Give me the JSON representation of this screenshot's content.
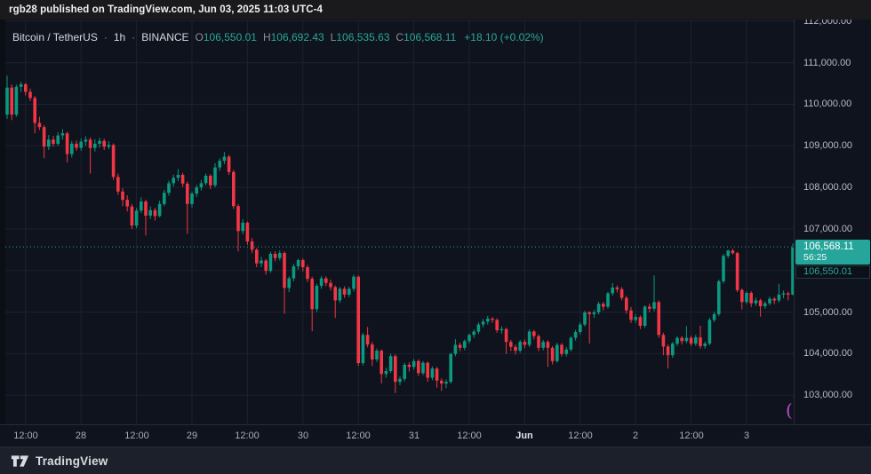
{
  "attribution": {
    "text": "rgb28 published on TradingView.com, Jun 03, 2025 11:03 UTC-4"
  },
  "legend": {
    "symbol": "Bitcoin / TetherUS",
    "sep1": "·",
    "interval": "1h",
    "sep2": "·",
    "exchange": "BINANCE",
    "o_label": "O",
    "o_value": "106,550.01",
    "h_label": "H",
    "h_value": "106,692.43",
    "l_label": "L",
    "l_value": "106,535.63",
    "c_label": "C",
    "c_value": "106,568.11",
    "change": "+18.10 (+0.02%)"
  },
  "price_axis": {
    "labels": [
      {
        "price": 112000,
        "text": "112,000.00"
      },
      {
        "price": 111000,
        "text": "111,000.00"
      },
      {
        "price": 110000,
        "text": "110,000.00"
      },
      {
        "price": 109000,
        "text": "109,000.00"
      },
      {
        "price": 108000,
        "text": "108,000.00"
      },
      {
        "price": 107000,
        "text": "107,000.00"
      },
      {
        "price": 105000,
        "text": "105,000.00"
      },
      {
        "price": 104000,
        "text": "104,000.00"
      },
      {
        "price": 103000,
        "text": "103,000.00"
      }
    ],
    "last_price_badge": {
      "price_text": "106,568.11",
      "countdown": "56:25"
    },
    "open_price_badge": {
      "price_text": "106,550.01"
    }
  },
  "time_axis": {
    "labels": [
      {
        "index": 4,
        "text": "12:00",
        "major": false
      },
      {
        "index": 16,
        "text": "28",
        "major": false
      },
      {
        "index": 28,
        "text": "12:00",
        "major": false
      },
      {
        "index": 40,
        "text": "29",
        "major": false
      },
      {
        "index": 52,
        "text": "12:00",
        "major": false
      },
      {
        "index": 64,
        "text": "30",
        "major": false
      },
      {
        "index": 76,
        "text": "12:00",
        "major": false
      },
      {
        "index": 88,
        "text": "31",
        "major": false
      },
      {
        "index": 100,
        "text": "12:00",
        "major": false
      },
      {
        "index": 112,
        "text": "Jun",
        "major": true
      },
      {
        "index": 124,
        "text": "12:00",
        "major": false
      },
      {
        "index": 136,
        "text": "2",
        "major": false
      },
      {
        "index": 148,
        "text": "12:00",
        "major": false
      },
      {
        "index": 160,
        "text": "3",
        "major": false
      }
    ]
  },
  "footer": {
    "logo_text": "TradingView"
  },
  "decorations": {
    "paren": "("
  },
  "colors": {
    "up": "#0a9981",
    "down": "#f23645",
    "grid": "#1c2230",
    "last_price_line": "#2aa79b",
    "badge": "#26a69a",
    "magenta": "#c04ad6"
  },
  "chart_data": {
    "type": "candlestick",
    "title": "Bitcoin / TetherUS · 1h · BINANCE",
    "interval": "1h",
    "ylim": [
      102320,
      112020
    ],
    "price_gridlines": [
      103000,
      104000,
      105000,
      106000,
      107000,
      108000,
      109000,
      110000,
      111000,
      112000
    ],
    "last_price": 106568.11,
    "open_price_marker": 106550.01,
    "time_start": "May 27 08:00",
    "time_end": "Jun 03 11:00",
    "candles": [
      [
        109750,
        110690,
        109650,
        110400
      ],
      [
        110400,
        110480,
        109620,
        109750
      ],
      [
        109750,
        110470,
        109700,
        110420
      ],
      [
        110420,
        110540,
        110300,
        110480
      ],
      [
        110480,
        110520,
        110210,
        110300
      ],
      [
        110300,
        110380,
        110080,
        110150
      ],
      [
        110150,
        110200,
        109300,
        109550
      ],
      [
        109550,
        109700,
        109380,
        109450
      ],
      [
        109450,
        109500,
        108700,
        108980
      ],
      [
        108980,
        109260,
        108900,
        109150
      ],
      [
        109150,
        109240,
        108980,
        109050
      ],
      [
        109050,
        109330,
        109000,
        109250
      ],
      [
        109250,
        109400,
        109150,
        109300
      ],
      [
        109300,
        109340,
        108600,
        108800
      ],
      [
        108800,
        109120,
        108720,
        109050
      ],
      [
        109050,
        109130,
        108880,
        108950
      ],
      [
        108950,
        109180,
        108880,
        109100
      ],
      [
        109100,
        109230,
        109000,
        109150
      ],
      [
        109150,
        109200,
        108330,
        108950
      ],
      [
        108950,
        109160,
        108860,
        109050
      ],
      [
        109050,
        109190,
        108960,
        109120
      ],
      [
        109120,
        109170,
        108900,
        108980
      ],
      [
        108980,
        109110,
        108920,
        109020
      ],
      [
        109020,
        109060,
        108180,
        108250
      ],
      [
        108250,
        108330,
        107820,
        107900
      ],
      [
        107900,
        107980,
        107550,
        107700
      ],
      [
        107700,
        107810,
        107420,
        107540
      ],
      [
        107540,
        107600,
        107000,
        107080
      ],
      [
        107080,
        107500,
        107020,
        107440
      ],
      [
        107440,
        107760,
        107380,
        107660
      ],
      [
        107660,
        107700,
        106840,
        107320
      ],
      [
        107320,
        107540,
        107240,
        107450
      ],
      [
        107450,
        107510,
        107200,
        107310
      ],
      [
        107310,
        107680,
        107280,
        107600
      ],
      [
        107600,
        107940,
        107550,
        107870
      ],
      [
        107870,
        108160,
        107800,
        108100
      ],
      [
        108100,
        108310,
        108020,
        108230
      ],
      [
        108230,
        108440,
        108150,
        108300
      ],
      [
        108300,
        108350,
        108010,
        108090
      ],
      [
        108090,
        108140,
        106880,
        107600
      ],
      [
        107600,
        107900,
        107520,
        107850
      ],
      [
        107850,
        108060,
        107770,
        108000
      ],
      [
        108000,
        108180,
        107920,
        108100
      ],
      [
        108100,
        108330,
        108050,
        108280
      ],
      [
        108280,
        108320,
        107960,
        108050
      ],
      [
        108050,
        108580,
        108000,
        108480
      ],
      [
        108480,
        108700,
        108400,
        108640
      ],
      [
        108640,
        108850,
        108560,
        108740
      ],
      [
        108740,
        108780,
        108300,
        108370
      ],
      [
        108370,
        108420,
        107480,
        107550
      ],
      [
        107550,
        107600,
        106460,
        106950
      ],
      [
        106950,
        107230,
        106870,
        107150
      ],
      [
        107150,
        107180,
        106620,
        106700
      ],
      [
        106700,
        106780,
        106420,
        106500
      ],
      [
        106500,
        106540,
        106080,
        106170
      ],
      [
        106170,
        106330,
        106080,
        106240
      ],
      [
        106240,
        106280,
        105900,
        105990
      ],
      [
        105990,
        106450,
        105940,
        106400
      ],
      [
        106400,
        106460,
        106220,
        106300
      ],
      [
        106300,
        106480,
        106240,
        106420
      ],
      [
        106420,
        106460,
        104960,
        105580
      ],
      [
        105580,
        105860,
        105480,
        105810
      ],
      [
        105810,
        106160,
        105740,
        106100
      ],
      [
        106100,
        106280,
        106020,
        106250
      ],
      [
        106250,
        106290,
        105980,
        106080
      ],
      [
        106080,
        106130,
        105720,
        105800
      ],
      [
        105800,
        105850,
        104540,
        105070
      ],
      [
        105070,
        105680,
        105000,
        105630
      ],
      [
        105630,
        105870,
        105560,
        105810
      ],
      [
        105810,
        105860,
        105620,
        105700
      ],
      [
        105700,
        105780,
        105520,
        105600
      ],
      [
        105600,
        105640,
        104860,
        105280
      ],
      [
        105280,
        105600,
        105220,
        105560
      ],
      [
        105560,
        105620,
        105340,
        105420
      ],
      [
        105420,
        105610,
        105360,
        105560
      ],
      [
        105560,
        105900,
        105500,
        105850
      ],
      [
        105850,
        105880,
        103700,
        103770
      ],
      [
        103770,
        104500,
        103720,
        104450
      ],
      [
        104450,
        104640,
        104150,
        104220
      ],
      [
        104220,
        104280,
        103700,
        103860
      ],
      [
        103860,
        104120,
        103800,
        104070
      ],
      [
        104070,
        104100,
        103280,
        103510
      ],
      [
        103510,
        103660,
        103420,
        103580
      ],
      [
        103580,
        104000,
        103530,
        103940
      ],
      [
        103940,
        103980,
        103050,
        103320
      ],
      [
        103320,
        103450,
        103240,
        103390
      ],
      [
        103390,
        103780,
        103330,
        103730
      ],
      [
        103730,
        103790,
        103570,
        103680
      ],
      [
        103680,
        103870,
        103610,
        103820
      ],
      [
        103820,
        103860,
        103460,
        103530
      ],
      [
        103530,
        103820,
        103480,
        103780
      ],
      [
        103780,
        103810,
        103320,
        103420
      ],
      [
        103420,
        103690,
        103360,
        103640
      ],
      [
        103640,
        103680,
        103180,
        103350
      ],
      [
        103350,
        103400,
        103100,
        103280
      ],
      [
        103280,
        103380,
        103170,
        103320
      ],
      [
        103320,
        104020,
        103280,
        103990
      ],
      [
        103990,
        104350,
        103940,
        104210
      ],
      [
        104210,
        104260,
        104060,
        104140
      ],
      [
        104140,
        104340,
        104080,
        104300
      ],
      [
        104300,
        104480,
        104240,
        104450
      ],
      [
        104450,
        104580,
        104380,
        104530
      ],
      [
        104530,
        104750,
        104470,
        104700
      ],
      [
        104700,
        104830,
        104630,
        104770
      ],
      [
        104770,
        104910,
        104700,
        104840
      ],
      [
        104840,
        104880,
        104740,
        104810
      ],
      [
        104810,
        104850,
        104500,
        104560
      ],
      [
        104560,
        104660,
        104480,
        104590
      ],
      [
        104590,
        104620,
        103990,
        104280
      ],
      [
        104280,
        104330,
        104060,
        104160
      ],
      [
        104160,
        104220,
        103980,
        104070
      ],
      [
        104070,
        104330,
        104020,
        104280
      ],
      [
        104280,
        104340,
        104130,
        104210
      ],
      [
        104210,
        104580,
        104160,
        104530
      ],
      [
        104530,
        104570,
        104340,
        104420
      ],
      [
        104420,
        104460,
        104060,
        104140
      ],
      [
        104140,
        104330,
        104080,
        104280
      ],
      [
        104280,
        104320,
        103680,
        104140
      ],
      [
        104140,
        104180,
        103740,
        103820
      ],
      [
        103820,
        104260,
        103780,
        104210
      ],
      [
        104210,
        104250,
        103930,
        103990
      ],
      [
        103990,
        104160,
        103930,
        104100
      ],
      [
        104100,
        104420,
        104050,
        104380
      ],
      [
        104380,
        104570,
        104310,
        104520
      ],
      [
        104520,
        104750,
        104460,
        104700
      ],
      [
        104700,
        105030,
        104650,
        104990
      ],
      [
        104990,
        105020,
        104240,
        104950
      ],
      [
        104950,
        105050,
        104860,
        104990
      ],
      [
        104990,
        105250,
        104940,
        105200
      ],
      [
        105200,
        105240,
        105040,
        105130
      ],
      [
        105130,
        105490,
        105080,
        105450
      ],
      [
        105450,
        105700,
        105390,
        105590
      ],
      [
        105590,
        105640,
        105470,
        105550
      ],
      [
        105550,
        105600,
        105280,
        105340
      ],
      [
        105340,
        105390,
        104960,
        105040
      ],
      [
        105040,
        105120,
        104740,
        104810
      ],
      [
        104810,
        104950,
        104740,
        104880
      ],
      [
        104880,
        104920,
        104590,
        104670
      ],
      [
        104670,
        105160,
        104620,
        105130
      ],
      [
        105130,
        105200,
        104990,
        105080
      ],
      [
        105080,
        105880,
        105020,
        105240
      ],
      [
        105240,
        105280,
        104380,
        104450
      ],
      [
        104450,
        104500,
        103960,
        104170
      ],
      [
        104170,
        104220,
        103640,
        103960
      ],
      [
        103960,
        104280,
        103900,
        104240
      ],
      [
        104240,
        104420,
        104180,
        104380
      ],
      [
        104380,
        104420,
        104220,
        104300
      ],
      [
        104300,
        104660,
        104250,
        104380
      ],
      [
        104380,
        104430,
        104180,
        104240
      ],
      [
        104240,
        104450,
        104190,
        104390
      ],
      [
        104390,
        104670,
        104120,
        104180
      ],
      [
        104180,
        104290,
        104120,
        104240
      ],
      [
        104240,
        104860,
        104200,
        104810
      ],
      [
        104810,
        105000,
        104760,
        104950
      ],
      [
        104950,
        105780,
        104900,
        105740
      ],
      [
        105740,
        106400,
        105690,
        106350
      ],
      [
        106350,
        106500,
        106300,
        106480
      ],
      [
        106480,
        106520,
        106380,
        106420
      ],
      [
        106420,
        106450,
        105480,
        105530
      ],
      [
        105530,
        105570,
        105060,
        105240
      ],
      [
        105240,
        105500,
        105190,
        105460
      ],
      [
        105460,
        105500,
        105120,
        105210
      ],
      [
        105210,
        105350,
        105150,
        105280
      ],
      [
        105280,
        105320,
        104890,
        105140
      ],
      [
        105140,
        105260,
        105080,
        105210
      ],
      [
        105210,
        105370,
        105160,
        105320
      ],
      [
        105320,
        105360,
        105190,
        105280
      ],
      [
        105280,
        105680,
        105230,
        105420
      ],
      [
        105420,
        105520,
        105330,
        105450
      ],
      [
        105450,
        105490,
        105280,
        105420
      ],
      [
        105420,
        106650,
        105400,
        106550
      ],
      [
        106550.01,
        106692.43,
        106535.63,
        106568.11
      ]
    ]
  }
}
